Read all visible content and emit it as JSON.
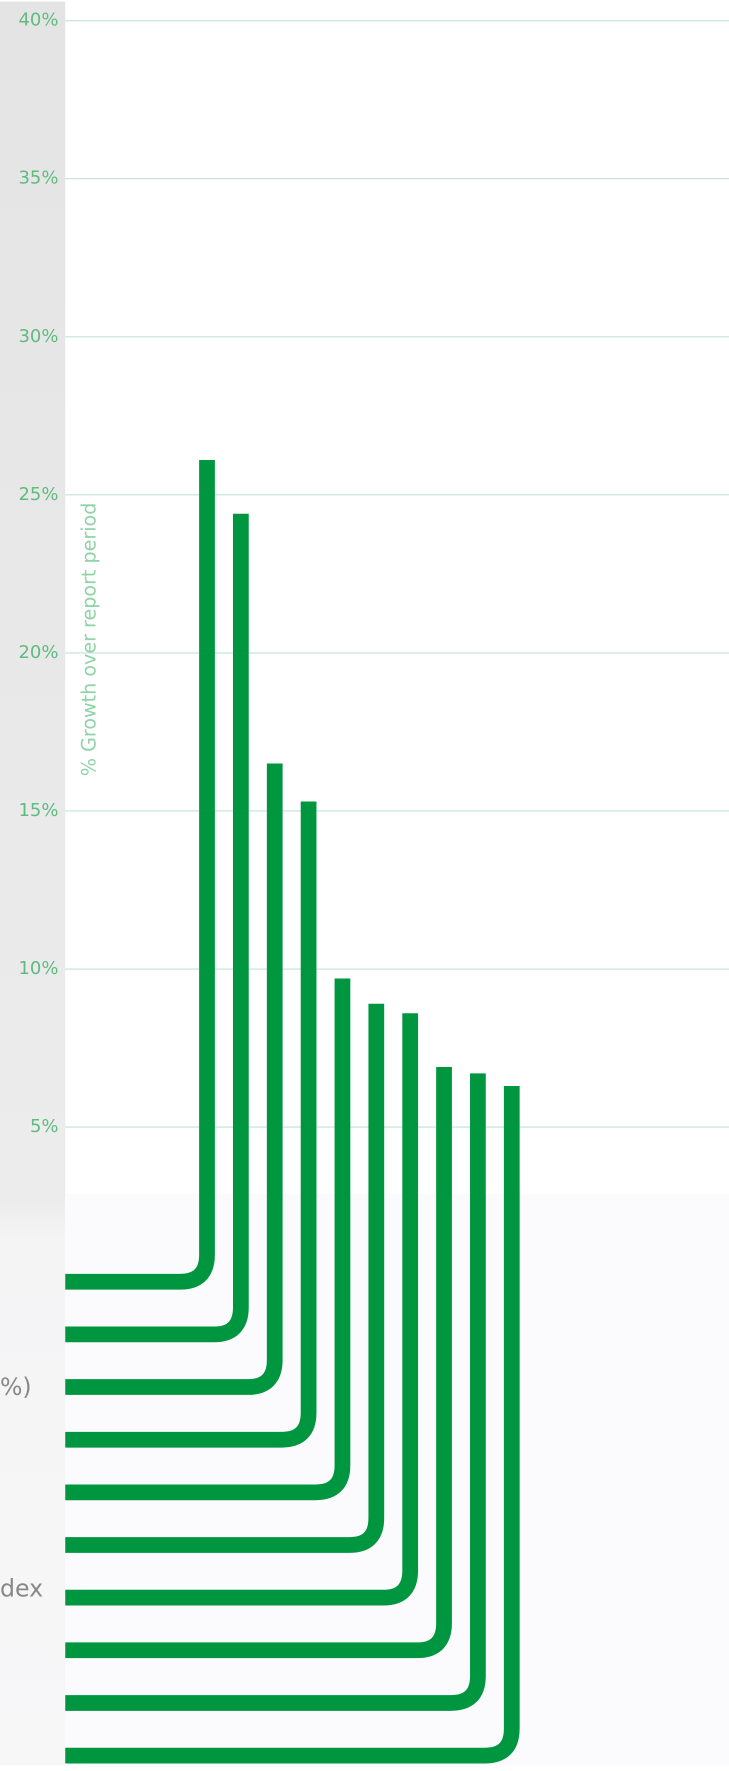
{
  "chart_data": {
    "type": "bar",
    "y_axis_label": "% Growth over report period",
    "values": [
      26.1,
      24.4,
      16.5,
      15.3,
      9.7,
      8.9,
      8.6,
      6.9,
      6.7,
      6.3
    ],
    "color": "#009640",
    "ylim": [
      0,
      40
    ],
    "yticks": [
      {
        "value": 5,
        "label": "5%"
      },
      {
        "value": 10,
        "label": "10%"
      },
      {
        "value": 15,
        "label": "15%"
      },
      {
        "value": 20,
        "label": "20%"
      },
      {
        "value": 25,
        "label": "25%"
      },
      {
        "value": 30,
        "label": "30%"
      },
      {
        "value": 35,
        "label": "35%"
      },
      {
        "value": 40,
        "label": "40%"
      }
    ],
    "grid": true,
    "fragments": [
      "%)",
      "dex"
    ]
  }
}
